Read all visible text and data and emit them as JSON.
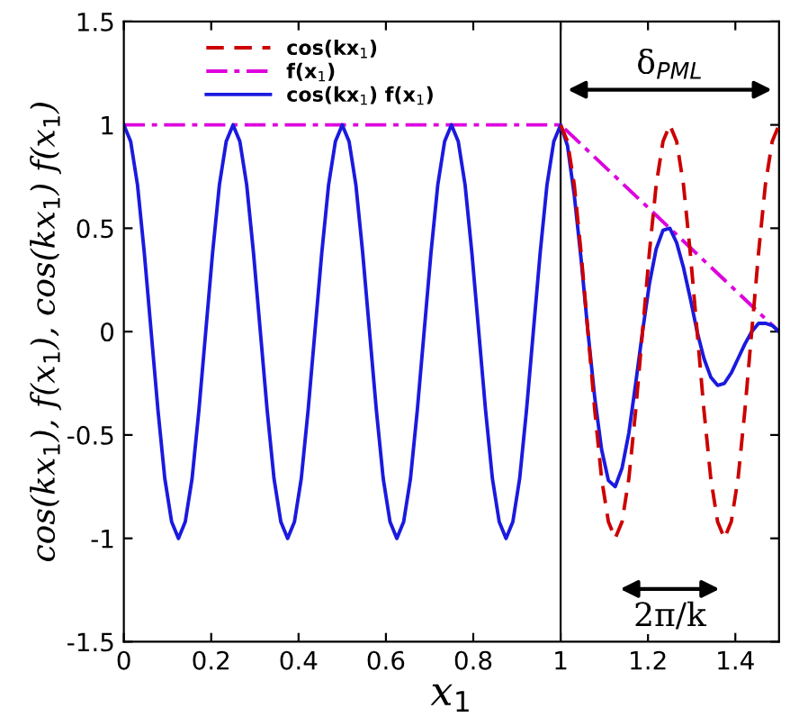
{
  "chart_data": {
    "type": "line",
    "xlabel": "x$_{1}$",
    "ylabel": "cos(kx$_{1}$), f(x$_{1}$), cos(kx$_{1}$) f(x$_{1}$)",
    "xlim": [
      0,
      1.5
    ],
    "xticks": [
      0,
      0.2,
      0.4,
      0.6,
      0.8,
      1,
      1.2,
      1.4
    ],
    "ylim": [
      -1.5,
      1.5
    ],
    "yticks": [
      {
        "value": -1.5,
        "label": "-1.5"
      },
      {
        "value": -1,
        "label": "-1"
      },
      {
        "value": -0.5,
        "label": "-0.5"
      },
      0,
      0.5,
      1,
      1.5
    ],
    "legend": "top",
    "grid": false,
    "marker": "none",
    "ref_lines": [
      {
        "axis": "x",
        "value": 1,
        "color": "#000000",
        "line_style": "solid"
      }
    ],
    "annotations": [
      "δ$_{PML}$",
      "2π/k"
    ],
    "series": [
      {
        "name": "cos(kx$_{1}$)",
        "color": "#cc0000",
        "line_style": "dashed",
        "x": [
          1,
          1.015625,
          1.03125,
          1.046875,
          1.0625,
          1.078125,
          1.09375,
          1.109375,
          1.125,
          1.140625,
          1.15625,
          1.171875,
          1.1875,
          1.203125,
          1.21875,
          1.234375,
          1.25,
          1.265625,
          1.28125,
          1.296875,
          1.3125,
          1.328125,
          1.34375,
          1.359375,
          1.375,
          1.390625,
          1.40625,
          1.421875,
          1.4375,
          1.453125,
          1.46875,
          1.484375,
          1.5
        ],
        "values": [
          1,
          0.92,
          0.71,
          0.38,
          0,
          -0.38,
          -0.71,
          -0.92,
          -1,
          -0.92,
          -0.71,
          -0.38,
          0,
          0.38,
          0.71,
          0.92,
          1,
          0.92,
          0.71,
          0.38,
          0,
          -0.38,
          -0.71,
          -0.92,
          -1,
          -0.92,
          -0.71,
          -0.38,
          0,
          0.38,
          0.71,
          0.92,
          1
        ]
      },
      {
        "name": "f(x$_{1}$)",
        "color": "#dd00dd",
        "line_style": "dashdot",
        "x": [
          0,
          1,
          1.5
        ],
        "values": [
          1,
          1,
          0
        ]
      },
      {
        "name": "cos(kx$_{1}$) f(x$_{1}$)",
        "color": "#1a1adf",
        "line_style": "solid",
        "x": [
          0,
          0.015625,
          0.03125,
          0.046875,
          0.0625,
          0.078125,
          0.09375,
          0.109375,
          0.125,
          0.140625,
          0.15625,
          0.171875,
          0.1875,
          0.203125,
          0.21875,
          0.234375,
          0.25,
          0.265625,
          0.28125,
          0.296875,
          0.3125,
          0.328125,
          0.34375,
          0.359375,
          0.375,
          0.390625,
          0.40625,
          0.421875,
          0.4375,
          0.453125,
          0.46875,
          0.484375,
          0.5,
          0.515625,
          0.53125,
          0.546875,
          0.5625,
          0.578125,
          0.59375,
          0.609375,
          0.625,
          0.640625,
          0.65625,
          0.671875,
          0.6875,
          0.703125,
          0.71875,
          0.734375,
          0.75,
          0.765625,
          0.78125,
          0.796875,
          0.8125,
          0.828125,
          0.84375,
          0.859375,
          0.875,
          0.890625,
          0.90625,
          0.921875,
          0.9375,
          0.953125,
          0.96875,
          0.984375,
          1,
          1.015625,
          1.03125,
          1.046875,
          1.0625,
          1.078125,
          1.09375,
          1.109375,
          1.125,
          1.140625,
          1.15625,
          1.171875,
          1.1875,
          1.203125,
          1.21875,
          1.234375,
          1.25,
          1.265625,
          1.28125,
          1.296875,
          1.3125,
          1.328125,
          1.34375,
          1.359375,
          1.375,
          1.390625,
          1.40625,
          1.421875,
          1.4375,
          1.453125,
          1.46875,
          1.484375,
          1.5
        ],
        "values": [
          1,
          0.92,
          0.71,
          0.38,
          0,
          -0.38,
          -0.71,
          -0.92,
          -1,
          -0.92,
          -0.71,
          -0.38,
          0,
          0.38,
          0.71,
          0.92,
          1,
          0.92,
          0.71,
          0.38,
          0,
          -0.38,
          -0.71,
          -0.92,
          -1,
          -0.92,
          -0.71,
          -0.38,
          0,
          0.38,
          0.71,
          0.92,
          1,
          0.92,
          0.71,
          0.38,
          0,
          -0.38,
          -0.71,
          -0.92,
          -1,
          -0.92,
          -0.71,
          -0.38,
          0,
          0.38,
          0.71,
          0.92,
          1,
          0.92,
          0.71,
          0.38,
          0,
          -0.38,
          -0.71,
          -0.92,
          -1,
          -0.92,
          -0.71,
          -0.38,
          0,
          0.38,
          0.71,
          0.92,
          1,
          0.9,
          0.66,
          0.35,
          0,
          -0.32,
          -0.57,
          -0.72,
          -0.75,
          -0.66,
          -0.49,
          -0.25,
          0,
          0.23,
          0.4,
          0.49,
          0.5,
          0.43,
          0.31,
          0.16,
          0,
          -0.13,
          -0.22,
          -0.26,
          -0.25,
          -0.2,
          -0.13,
          -0.06,
          0,
          0.04,
          0.04,
          0.03,
          0
        ]
      }
    ]
  }
}
